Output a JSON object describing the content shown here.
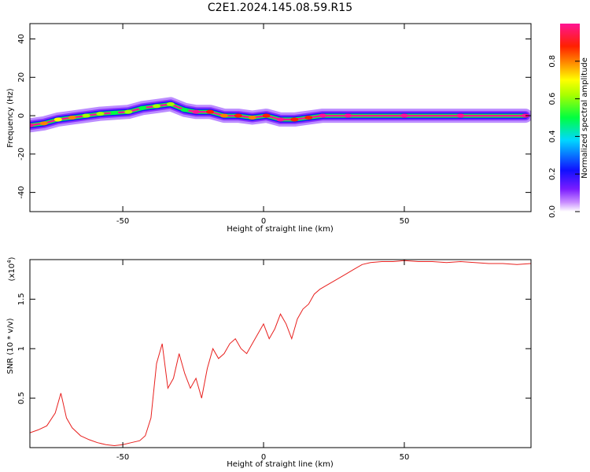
{
  "figure_title": "C2E1.2024.145.08.59.R15",
  "colors": {
    "snr_line": "#e8201e",
    "ridge": "#e8201e",
    "axes": "#000000"
  },
  "chart_data": [
    {
      "type": "heatmap",
      "title": "C2E1.2024.145.08.59.R15",
      "xlabel": "Height of straight line (km)",
      "ylabel": "Frequency (Hz)",
      "xlim": [
        -83,
        95
      ],
      "ylim": [
        -50,
        48
      ],
      "xticks": [
        -50,
        0,
        50
      ],
      "yticks": [
        -40,
        -20,
        0,
        20,
        40
      ],
      "colormap": "rainbow (white-violet-blue-cyan-green-yellow-red-magenta)",
      "colorbar": {
        "label": "Normalized spectral amplitude",
        "range": [
          0,
          1
        ],
        "ticks": [
          0.0,
          0.2,
          0.4,
          0.6,
          0.8
        ]
      },
      "ridge_points": [
        {
          "x": -83,
          "y": -5,
          "amp": 0.9
        },
        {
          "x": -78,
          "y": -4,
          "amp": 0.8
        },
        {
          "x": -73,
          "y": -2,
          "amp": 0.7
        },
        {
          "x": -68,
          "y": -1,
          "amp": 0.75
        },
        {
          "x": -63,
          "y": 0,
          "amp": 0.6
        },
        {
          "x": -58,
          "y": 1,
          "amp": 0.55
        },
        {
          "x": -53,
          "y": 1.5,
          "amp": 0.5
        },
        {
          "x": -48,
          "y": 2,
          "amp": 0.6
        },
        {
          "x": -43,
          "y": 4,
          "amp": 0.5
        },
        {
          "x": -38,
          "y": 5,
          "amp": 0.6
        },
        {
          "x": -33,
          "y": 6,
          "amp": 0.55
        },
        {
          "x": -28,
          "y": 3,
          "amp": 0.5
        },
        {
          "x": -24,
          "y": 2,
          "amp": 0.9
        },
        {
          "x": -19,
          "y": 2,
          "amp": 0.85
        },
        {
          "x": -14,
          "y": 0,
          "amp": 0.8
        },
        {
          "x": -9,
          "y": 0,
          "amp": 0.85
        },
        {
          "x": -4,
          "y": -1,
          "amp": 0.8
        },
        {
          "x": 1,
          "y": 0,
          "amp": 0.85
        },
        {
          "x": 6,
          "y": -2,
          "amp": 0.9
        },
        {
          "x": 11,
          "y": -2,
          "amp": 0.85
        },
        {
          "x": 16,
          "y": -1,
          "amp": 0.85
        },
        {
          "x": 21,
          "y": 0,
          "amp": 0.9
        },
        {
          "x": 30,
          "y": 0,
          "amp": 0.95
        },
        {
          "x": 50,
          "y": 0,
          "amp": 1.0
        },
        {
          "x": 70,
          "y": 0,
          "amp": 1.0
        },
        {
          "x": 93,
          "y": 0,
          "amp": 1.0
        }
      ]
    },
    {
      "type": "line",
      "xlabel": "Height of straight line (km)",
      "ylabel": "SNR (10 * v/v)",
      "y_multiplier_label": "(x10",
      "y_multiplier_exp": "4",
      "xlim": [
        -83,
        95
      ],
      "ylim": [
        0.0,
        1.9
      ],
      "xticks": [
        -50,
        0,
        50
      ],
      "yticks": [
        0.5,
        1.0,
        1.5
      ],
      "series": [
        {
          "x": [
            -83,
            -80,
            -77,
            -74,
            -72,
            -70,
            -68,
            -65,
            -62,
            -59,
            -56,
            -53,
            -50,
            -47,
            -44,
            -42,
            -40,
            -38,
            -36,
            -34,
            -32,
            -30,
            -28,
            -26,
            -24,
            -22,
            -20,
            -18,
            -16,
            -14,
            -12,
            -10,
            -8,
            -6,
            -4,
            -2,
            0,
            2,
            4,
            6,
            8,
            10,
            12,
            14,
            16,
            18,
            20,
            23,
            26,
            29,
            32,
            35,
            38,
            42,
            46,
            50,
            55,
            60,
            65,
            70,
            75,
            80,
            85,
            90,
            95
          ],
          "y": [
            0.15,
            0.18,
            0.22,
            0.35,
            0.55,
            0.3,
            0.2,
            0.12,
            0.08,
            0.05,
            0.03,
            0.02,
            0.03,
            0.05,
            0.07,
            0.12,
            0.3,
            0.85,
            1.05,
            0.6,
            0.7,
            0.95,
            0.75,
            0.6,
            0.7,
            0.5,
            0.8,
            1.0,
            0.9,
            0.95,
            1.05,
            1.1,
            1.0,
            0.95,
            1.05,
            1.15,
            1.25,
            1.1,
            1.2,
            1.35,
            1.25,
            1.1,
            1.3,
            1.4,
            1.45,
            1.55,
            1.6,
            1.65,
            1.7,
            1.75,
            1.8,
            1.85,
            1.87,
            1.88,
            1.88,
            1.89,
            1.88,
            1.88,
            1.87,
            1.88,
            1.87,
            1.86,
            1.86,
            1.85,
            1.86
          ]
        }
      ]
    }
  ]
}
